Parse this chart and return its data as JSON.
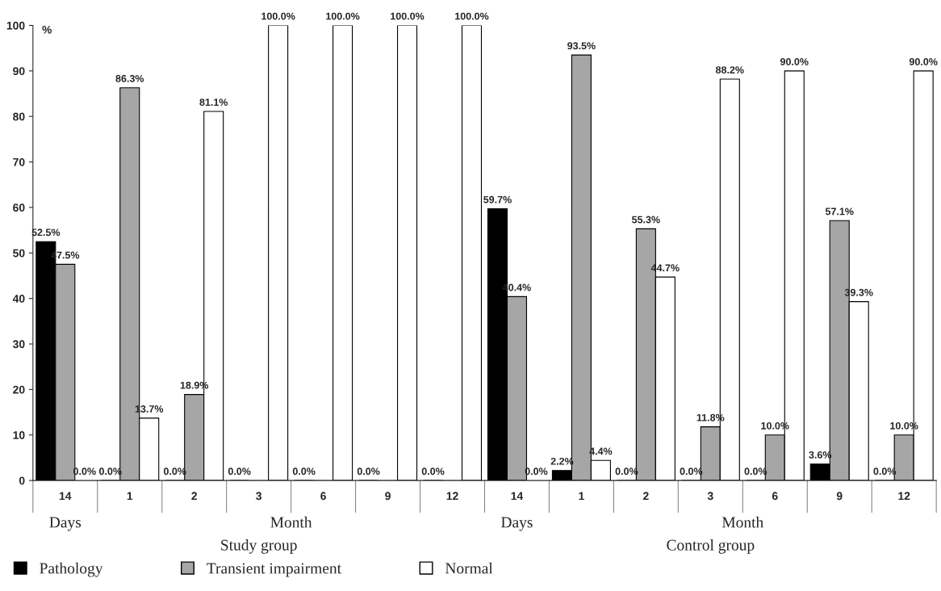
{
  "chart_data": {
    "type": "bar",
    "categories": [
      "14",
      "1",
      "2",
      "3",
      "6",
      "9",
      "12",
      "14",
      "1",
      "2",
      "3",
      "6",
      "9",
      "12"
    ],
    "series": [
      {
        "name": "Pathology",
        "color": "#000000",
        "values": [
          52.5,
          0.0,
          0.0,
          0.0,
          0.0,
          0.0,
          0.0,
          59.7,
          2.2,
          0.0,
          0.0,
          0.0,
          3.6,
          0.0
        ],
        "value_labels": [
          "52.5%",
          "0.0%",
          "0.0%",
          "0.0%",
          "0.0%",
          "0.0%",
          "0.0%",
          "59.7%",
          "2.2%",
          "0.0%",
          "0.0%",
          "0.0%",
          "3.6%",
          "0.0%"
        ]
      },
      {
        "name": "Transient impairment",
        "color": "#a6a6a6",
        "values": [
          47.5,
          86.3,
          18.9,
          0.0,
          0.0,
          0.0,
          0.0,
          40.4,
          93.5,
          55.3,
          11.8,
          10.0,
          57.1,
          10.0
        ],
        "value_labels": [
          "47.5%",
          "86.3%",
          "18.9%",
          null,
          null,
          null,
          null,
          "40.4%",
          "93.5%",
          "55.3%",
          "11.8%",
          "10.0%",
          "57.1%",
          "10.0%"
        ]
      },
      {
        "name": "Normal",
        "color": "#ffffff",
        "values": [
          0.0,
          13.7,
          81.1,
          100.0,
          100.0,
          100.0,
          100.0,
          0.0,
          4.4,
          44.7,
          88.2,
          90.0,
          39.3,
          90.0
        ],
        "value_labels": [
          "0.0%",
          "13.7%",
          "81.1%",
          "100.0%",
          "100.0%",
          "100.0%",
          "100.0%",
          "0.0%",
          "4.4%",
          "44.7%",
          "88.2%",
          "90.0%",
          "39.3%",
          "90.0%"
        ]
      }
    ],
    "ylabel": "%",
    "ylim": [
      0,
      100
    ],
    "yticks": [
      0,
      10,
      20,
      30,
      40,
      50,
      60,
      70,
      80,
      90,
      100
    ],
    "annotations": [
      "Days",
      "Month",
      "Days",
      "Month",
      "Study group",
      "Control group"
    ],
    "legend": "bottom left",
    "grid": false
  }
}
